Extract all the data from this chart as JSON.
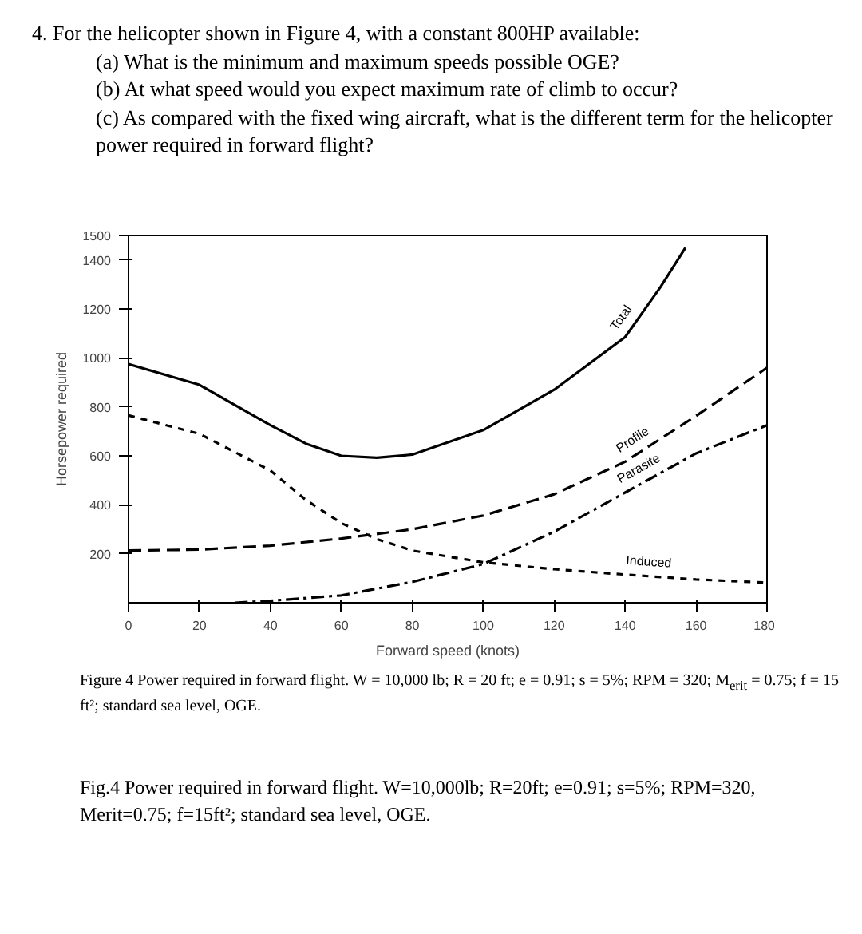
{
  "chart_data": {
    "type": "line",
    "title": "4. For the helicopter shown in Figure 4, with a constant 800HP available:",
    "subtitle": "(a) What is the minimum and maximum speeds possible OGE? (b) At what speed would you expect maximum rate of climb to occur? (c) As compared with the fixed wing aircraft, what is the different term for the helicopter power required in forward flight?",
    "xlabel": "Forward speed (knots)",
    "ylabel": "Horsepower required",
    "annotations": [
      "Figure 4    Power required in forward flight. W = 10,000 lb; R = 20 ft; e = 0.91; s = 5%; RPM = 320; M$_{erit}$ = 0.75; f = 15 ft²; standard sea level, OGE.",
      "Fig.4 Power required in forward flight. W=10,000lb; R=20ft; e=0.91; s=5%; RPM=320, Merit=0.75; f=15ft²; standard sea level, OGE."
    ],
    "series": [
      {
        "name": "Total",
        "color": "#000000",
        "line_style": "solid",
        "x": [
          0,
          20,
          40,
          50,
          60,
          70,
          80,
          100,
          120,
          140,
          150,
          157
        ],
        "values": [
          975,
          890,
          725,
          650,
          600,
          592,
          605,
          705,
          870,
          1085,
          1290,
          1450
        ]
      },
      {
        "name": "Profile",
        "color": "#000000",
        "line_style": "dashed",
        "x": [
          0,
          20,
          40,
          60,
          80,
          100,
          120,
          140,
          160,
          180
        ],
        "values": [
          213,
          217,
          233,
          262,
          300,
          356,
          443,
          576,
          763,
          960
        ]
      },
      {
        "name": "Parasite",
        "color": "#000000",
        "line_style": "dashdot",
        "x": [
          30,
          40,
          60,
          80,
          100,
          120,
          140,
          160,
          180
        ],
        "values": [
          0,
          8,
          30,
          85,
          158,
          290,
          450,
          610,
          725
        ]
      },
      {
        "name": "Induced",
        "color": "#000000",
        "line_style": "dotted",
        "x": [
          0,
          20,
          40,
          50,
          60,
          70,
          80,
          100,
          120,
          140,
          160,
          180
        ],
        "values": [
          765,
          690,
          540,
          420,
          325,
          260,
          213,
          165,
          137,
          115,
          95,
          82
        ]
      }
    ],
    "xlim": [
      0,
      180
    ],
    "xticks": [
      0,
      20,
      40,
      60,
      80,
      100,
      120,
      140,
      160,
      180
    ],
    "ylim": [
      0,
      1500
    ],
    "yticks": [
      200,
      400,
      600,
      800,
      1000,
      1200,
      1400,
      1500
    ],
    "grid": false,
    "legend": false
  }
}
